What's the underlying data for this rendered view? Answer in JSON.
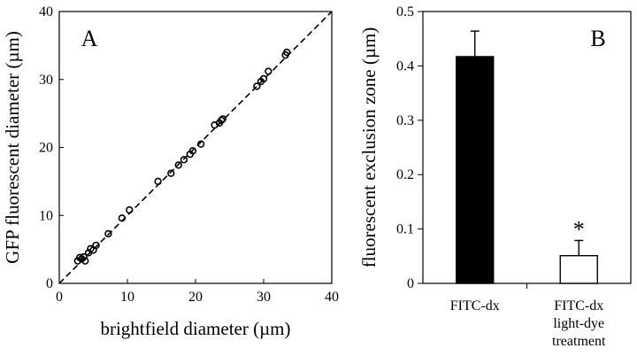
{
  "chart_data": [
    {
      "type": "scatter",
      "panel_label": "A",
      "xlabel": "brightfield diameter (µm)",
      "ylabel": "GFP fluorescent diameter (µm)",
      "xlim": [
        0,
        40
      ],
      "ylim": [
        0,
        40
      ],
      "xticks": [
        0,
        10,
        20,
        30,
        40
      ],
      "yticks": [
        0,
        10,
        20,
        30,
        40
      ],
      "reference_line": "y = x (dashed)",
      "grid": false,
      "points": [
        [
          2.7,
          3.3
        ],
        [
          3.0,
          3.8
        ],
        [
          3.3,
          3.6
        ],
        [
          3.6,
          3.9
        ],
        [
          3.8,
          3.3
        ],
        [
          4.3,
          4.5
        ],
        [
          4.6,
          5.1
        ],
        [
          5.0,
          4.9
        ],
        [
          5.4,
          5.6
        ],
        [
          7.2,
          7.3
        ],
        [
          9.2,
          9.6
        ],
        [
          10.3,
          10.8
        ],
        [
          14.5,
          15.0
        ],
        [
          16.4,
          16.2
        ],
        [
          17.5,
          17.4
        ],
        [
          18.3,
          18.2
        ],
        [
          19.2,
          19.0
        ],
        [
          19.6,
          19.5
        ],
        [
          20.8,
          20.5
        ],
        [
          22.8,
          23.3
        ],
        [
          23.5,
          23.6
        ],
        [
          23.8,
          24.0
        ],
        [
          24.0,
          24.2
        ],
        [
          29.0,
          29.0
        ],
        [
          29.6,
          29.7
        ],
        [
          30.0,
          30.1
        ],
        [
          30.7,
          31.2
        ],
        [
          33.2,
          33.6
        ],
        [
          33.4,
          34.0
        ]
      ]
    },
    {
      "type": "bar",
      "panel_label": "B",
      "ylabel": "fluorescent exclusion zone (µm)",
      "ylim": [
        0,
        0.5
      ],
      "yticks": [
        0,
        0.1,
        0.2,
        0.3,
        0.4,
        0.5
      ],
      "ytick_labels": [
        "0",
        "0.1",
        "0.2",
        "0.3",
        "0.4",
        "0.5"
      ],
      "categories": [
        [
          "FITC-dx"
        ],
        [
          "FITC-dx",
          "light-dye",
          "treatment"
        ]
      ],
      "values": [
        0.417,
        0.051
      ],
      "errors": [
        0.047,
        0.028
      ],
      "bar_colors": [
        "#000000",
        "#ffffff"
      ],
      "significance_marker": {
        "bar_index": 1,
        "text": "*"
      },
      "grid": false
    }
  ]
}
